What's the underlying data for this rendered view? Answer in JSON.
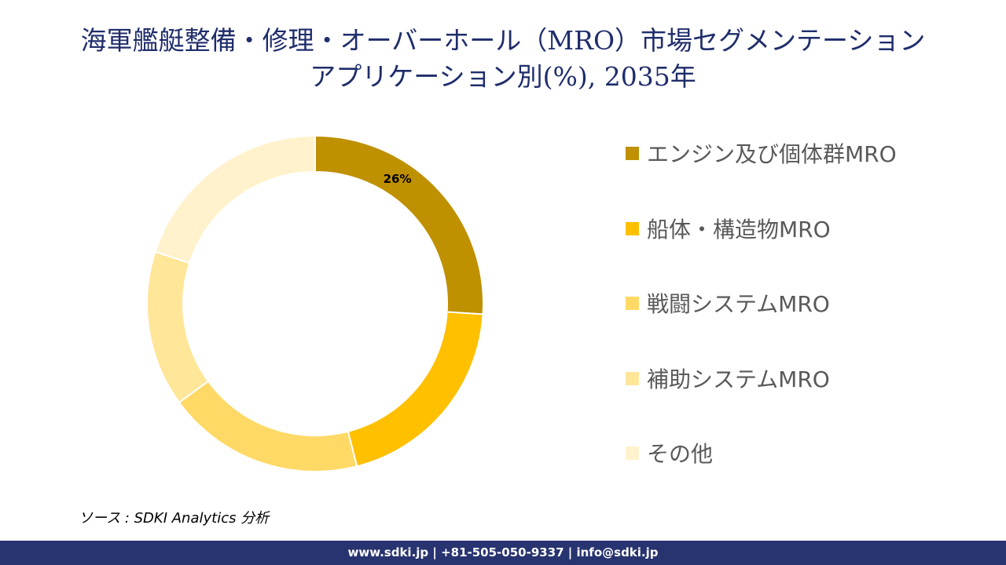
{
  "title_line1": "海軍艦艇整備・修理・オーバーホール（MRO）市場セグメンテーション",
  "title_line2": "アプリケーション別(%), 2035年",
  "chart_data": {
    "type": "pie",
    "subtype": "donut",
    "categories": [
      "エンジン及び個体群MRO",
      "船体・構造物MRO",
      "戦闘システムMRO",
      "補助システムMRO",
      "その他"
    ],
    "values": [
      26,
      20,
      19,
      15,
      20
    ],
    "data_labels": [
      "26%",
      "",
      "",
      "",
      ""
    ],
    "colors": [
      "#BF9000",
      "#FFC000",
      "#FFD966",
      "#FFE699",
      "#FFF2CC"
    ],
    "legend_position": "right"
  },
  "source": "ソース : SDKI Analytics 分析",
  "footer": "www.sdki.jp | +81-505-050-9337 | info@sdki.jp"
}
